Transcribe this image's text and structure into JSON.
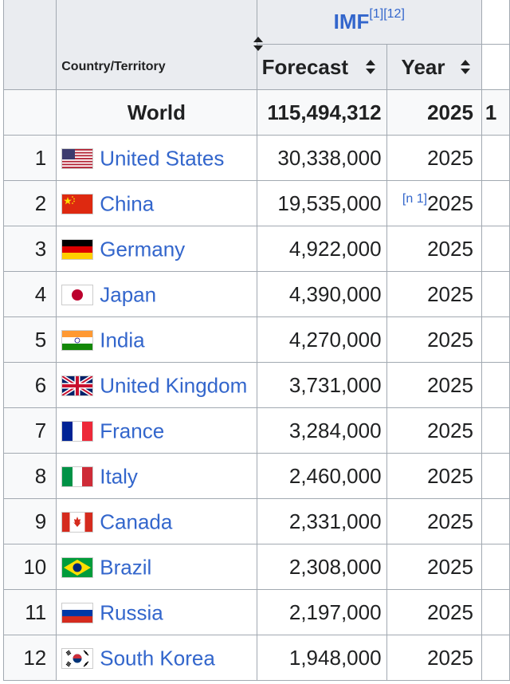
{
  "header": {
    "imf_label": "IMF",
    "imf_refs": "[1][12]",
    "country_label": "Country/Territory",
    "forecast_label": "Forecast",
    "year_label": "Year",
    "overflow_fragment": "1"
  },
  "world": {
    "label": "World",
    "forecast": "115,494,312",
    "year": "2025"
  },
  "rows": [
    {
      "rank": "1",
      "country": "United States",
      "flag": "us-flag-icon",
      "forecast": "30,338,000",
      "year": "2025"
    },
    {
      "rank": "2",
      "country": "China",
      "flag": "china-flag-icon",
      "forecast": "19,535,000",
      "year": "2025",
      "note": "[n 1]"
    },
    {
      "rank": "3",
      "country": "Germany",
      "flag": "germany-flag-icon",
      "forecast": "4,922,000",
      "year": "2025"
    },
    {
      "rank": "4",
      "country": "Japan",
      "flag": "japan-flag-icon",
      "forecast": "4,390,000",
      "year": "2025"
    },
    {
      "rank": "5",
      "country": "India",
      "flag": "india-flag-icon",
      "forecast": "4,270,000",
      "year": "2025"
    },
    {
      "rank": "6",
      "country": "United Kingdom",
      "flag": "uk-flag-icon",
      "forecast": "3,731,000",
      "year": "2025"
    },
    {
      "rank": "7",
      "country": "France",
      "flag": "france-flag-icon",
      "forecast": "3,284,000",
      "year": "2025"
    },
    {
      "rank": "8",
      "country": "Italy",
      "flag": "italy-flag-icon",
      "forecast": "2,460,000",
      "year": "2025"
    },
    {
      "rank": "9",
      "country": "Canada",
      "flag": "canada-flag-icon",
      "forecast": "2,331,000",
      "year": "2025"
    },
    {
      "rank": "10",
      "country": "Brazil",
      "flag": "brazil-flag-icon",
      "forecast": "2,308,000",
      "year": "2025"
    },
    {
      "rank": "11",
      "country": "Russia",
      "flag": "russia-flag-icon",
      "forecast": "2,197,000",
      "year": "2025"
    },
    {
      "rank": "12",
      "country": "South Korea",
      "flag": "south-korea-flag-icon",
      "forecast": "1,948,000",
      "year": "2025"
    }
  ],
  "colors": {
    "link": "#3366cc",
    "header_bg": "#eaecf0",
    "border": "#a2a9b1"
  }
}
